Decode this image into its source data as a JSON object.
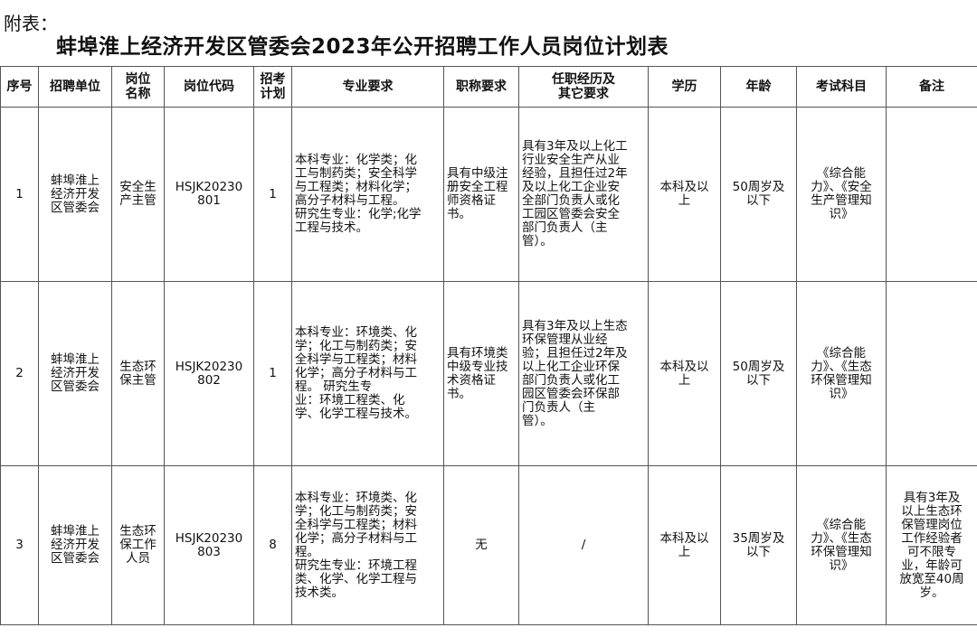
{
  "prefix": "附表：",
  "title": "蚌埠淮上经济开发区管委会2023年公开招聘工作人员岗位计划表",
  "headers": [
    "序号",
    "招聘单位",
    "岗位\n名称",
    "岗位代码",
    "招考\n计划",
    "专业要求",
    "职称要求",
    "任职经历及\n其它要求",
    "学历",
    "年龄",
    "考试科目",
    "备注"
  ],
  "rows": [
    [
      "1",
      "蚌埠淮上\n经济开发\n区管委会",
      "安全生\n产主管",
      "HSJK20230\n801",
      "1",
      "本科专业：化学类；化\n工与制药类；安全科学\n与工程类；材料化学；\n高分子材料与工程。\n研究生专业：化学;化学\n工程与技术。",
      "具有中级注\n册安全工程\n师资格证\n书。",
      "具有3年及以上化工\n行业安全生产从业\n经验，且担任过2年\n及以上化工企业安\n全部门负责人或化\n工园区管委会安全\n部门负责人（主\n管）。",
      "本科及以\n上",
      "50周岁及\n以下",
      "《综合能\n力》、《安全\n生产管理知\n识》",
      ""
    ],
    [
      "2",
      "蚌埠淮上\n经济开发\n区管委会",
      "生态环\n保主管",
      "HSJK20230\n802",
      "1",
      "本科专业：环境类、化\n学；化工与制药类；安\n全科学与工程类；材料\n化学；高分子材料与工\n程。          研究生专\n业：环境工程类、化\n学、化学工程与技术。",
      "具有环境类\n中级专业技\n术资格证\n书。",
      "具有3年及以上生态\n环保管理从业经\n验；且担任过2年及\n以上化工企业环保\n部门负责人或化工\n园区管委会环保部\n门负责人（主\n管）。",
      "本科及以\n上",
      "50周岁及\n以下",
      "《综合能\n力》、《生态\n环保管理知\n识》",
      ""
    ],
    [
      "3",
      "蚌埠淮上\n经济开发\n区管委会",
      "生态环\n保工作\n人员",
      "HSJK20230\n803",
      "8",
      "本科专业：环境类、化\n学；化工与制药类；安\n全科学与工程类；材料\n化学；高分子材料与工\n程。\n研究生专业：环境工程\n类、化学、化学工程与\n技术类。",
      "无",
      "/",
      "本科及以\n上",
      "35周岁及\n以下",
      "《综合能\n力》、《生态\n环保管理知\n识》",
      "具有3年及\n以上生态环\n保管理岗位\n工作经验者\n可不限专\n业，年龄可\n放宽至40周\n岁。"
    ]
  ]
}
